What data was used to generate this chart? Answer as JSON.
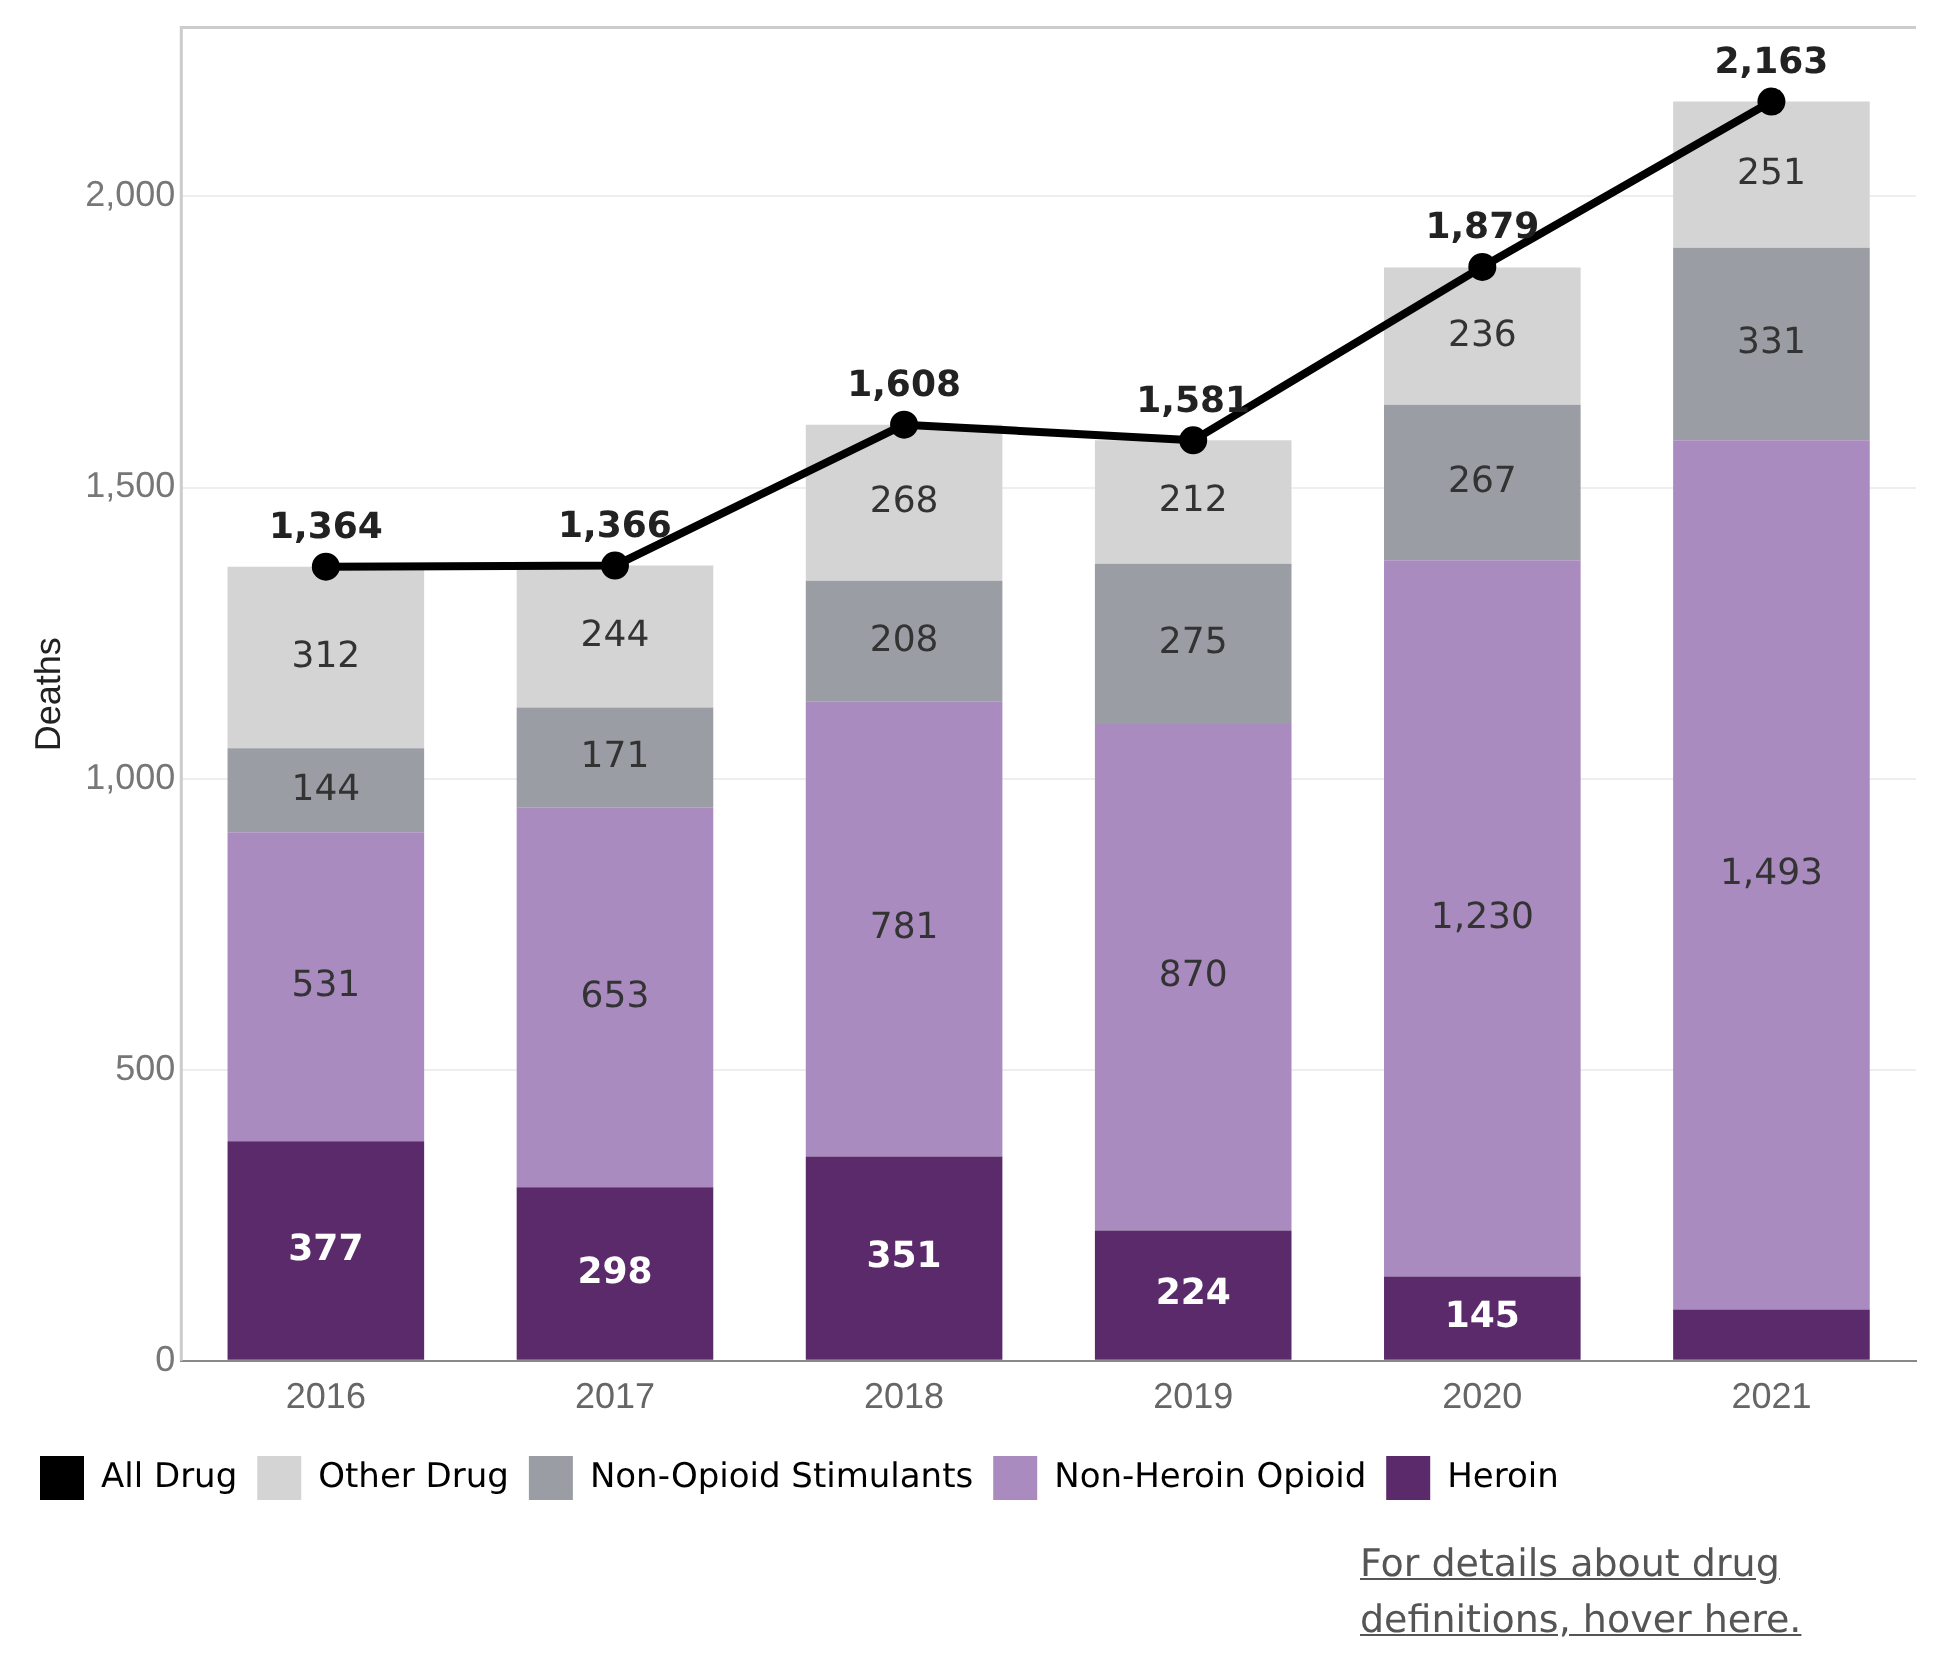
{
  "chart_data": {
    "type": "bar",
    "stacked": true,
    "ylabel": "Deaths",
    "categories": [
      "2016",
      "2017",
      "2018",
      "2019",
      "2020",
      "2021"
    ],
    "series": [
      {
        "name": "Heroin",
        "color": "#5b2a6b",
        "values": [
          377,
          298,
          351,
          224,
          145,
          88
        ],
        "value_labels": [
          "377",
          "298",
          "351",
          "224",
          "145",
          null
        ]
      },
      {
        "name": "Non-Heroin Opioid",
        "color": "#a98bc0",
        "values": [
          531,
          653,
          781,
          870,
          1230,
          1493
        ],
        "value_labels": [
          "531",
          "653",
          "781",
          "870",
          "1,230",
          "1,493"
        ]
      },
      {
        "name": "Non-Opioid Stimulants",
        "color": "#9a9da3",
        "values": [
          144,
          171,
          208,
          275,
          267,
          331
        ],
        "value_labels": [
          "144",
          "171",
          "208",
          "275",
          "267",
          "331"
        ]
      },
      {
        "name": "Other Drug",
        "color": "#d4d4d4",
        "values": [
          312,
          244,
          268,
          212,
          236,
          251
        ],
        "value_labels": [
          "312",
          "244",
          "268",
          "212",
          "236",
          "251"
        ]
      },
      {
        "name": "All Drug",
        "type": "line",
        "color": "#000000",
        "marker": "circle",
        "values": [
          1364,
          1366,
          1608,
          1581,
          1879,
          2163
        ],
        "value_labels": [
          "1,364",
          "1,366",
          "1,608",
          "1,581",
          "1,879",
          "2,163"
        ]
      }
    ],
    "ylim": [
      0,
      2290
    ],
    "yticks": [
      {
        "value": 0,
        "label": "0"
      },
      {
        "value": 500,
        "label": "500"
      },
      {
        "value": 1000,
        "label": "1,000"
      },
      {
        "value": 1500,
        "label": "1,500"
      },
      {
        "value": 2000,
        "label": "2,000"
      }
    ],
    "grid": "y",
    "legend": "bottom",
    "annotations": [
      "For details about drug definitions, hover here."
    ]
  }
}
